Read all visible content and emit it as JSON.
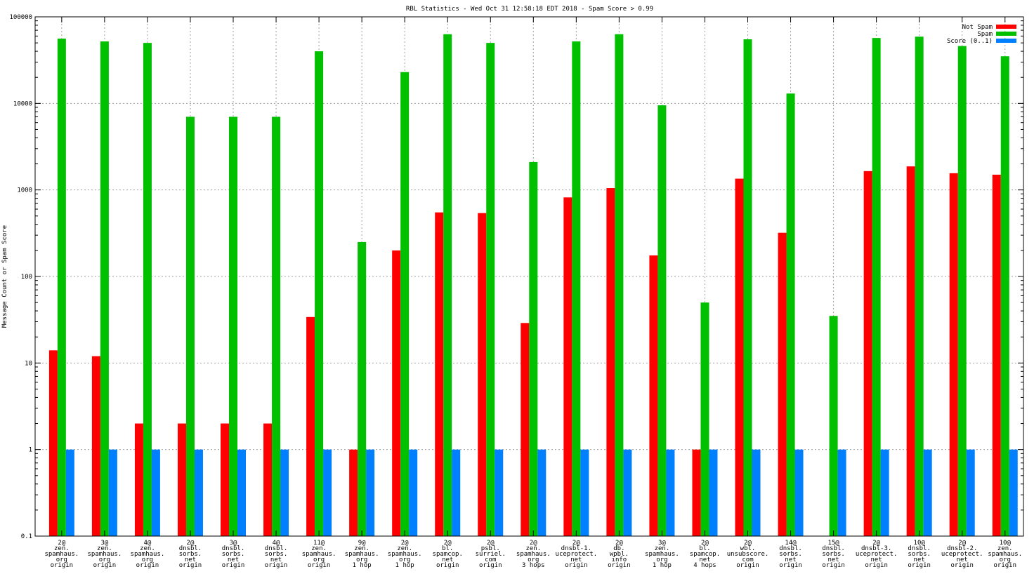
{
  "chart_data": {
    "type": "bar",
    "title": "RBL Statistics - Wed Oct 31 12:58:18 EDT 2018 - Spam Score > 0.99",
    "xlabel": "",
    "ylabel": "Message Count or Spam Score",
    "yscale": "log",
    "ylim": [
      0.1,
      100000
    ],
    "yticks": [
      "0.1",
      "1",
      "10",
      "100",
      "1000",
      "10000",
      "100000"
    ],
    "grid": true,
    "legend_position": "top-right",
    "categories": [
      [
        "2@",
        "zen.",
        "spamhaus.",
        "org",
        "origin"
      ],
      [
        "3@",
        "zen.",
        "spamhaus.",
        "org",
        "origin"
      ],
      [
        "4@",
        "zen.",
        "spamhaus.",
        "org",
        "origin"
      ],
      [
        "2@",
        "dnsbl.",
        "sorbs.",
        "net",
        "origin"
      ],
      [
        "3@",
        "dnsbl.",
        "sorbs.",
        "net",
        "origin"
      ],
      [
        "4@",
        "dnsbl.",
        "sorbs.",
        "net",
        "origin"
      ],
      [
        "11@",
        "zen.",
        "spamhaus.",
        "org",
        "origin"
      ],
      [
        "9@",
        "zen.",
        "spamhaus.",
        "org",
        "1 hop"
      ],
      [
        "2@",
        "zen.",
        "spamhaus.",
        "org",
        "1 hop"
      ],
      [
        "2@",
        "bl.",
        "spamcop.",
        "net",
        "origin"
      ],
      [
        "2@",
        "psbl.",
        "surriel.",
        "com",
        "origin"
      ],
      [
        "2@",
        "zen.",
        "spamhaus.",
        "org",
        "3 hops"
      ],
      [
        "2@",
        "dnsbl-1.",
        "uceprotect.",
        "net",
        "origin"
      ],
      [
        "2@",
        "db.",
        "wpbl.",
        "info",
        "origin"
      ],
      [
        "3@",
        "zen.",
        "spamhaus.",
        "org",
        "1 hop"
      ],
      [
        "2@",
        "bl.",
        "spamcop.",
        "net",
        "4 hops"
      ],
      [
        "2@",
        "wbl.",
        "unsubscore.",
        "com",
        "origin"
      ],
      [
        "14@",
        "dnsbl.",
        "sorbs.",
        "net",
        "origin"
      ],
      [
        "15@",
        "dnsbl.",
        "sorbs.",
        "net",
        "origin"
      ],
      [
        "2@",
        "dnsbl-3.",
        "uceprotect.",
        "net",
        "origin"
      ],
      [
        "10@",
        "dnsbl.",
        "sorbs.",
        "net",
        "origin"
      ],
      [
        "2@",
        "dnsbl-2.",
        "uceprotect.",
        "net",
        "origin"
      ],
      [
        "10@",
        "zen.",
        "spamhaus.",
        "org",
        "origin"
      ]
    ],
    "series": [
      {
        "name": "Not Spam",
        "color": "#ff0000",
        "values": [
          14,
          12,
          2,
          2,
          2,
          2,
          34,
          1,
          200,
          550,
          540,
          29,
          820,
          1050,
          175,
          1,
          1350,
          320,
          null,
          1650,
          1870,
          1560,
          1500
        ]
      },
      {
        "name": "Spam",
        "color": "#00c000",
        "values": [
          56000,
          52000,
          50000,
          7000,
          7000,
          7000,
          40000,
          250,
          23000,
          63000,
          50000,
          2100,
          52000,
          63000,
          9500,
          50,
          55000,
          13000,
          35,
          57000,
          59000,
          46000,
          35000
        ]
      },
      {
        "name": "Score (0..1)",
        "color": "#0080ff",
        "values": [
          1,
          1,
          1,
          1,
          1,
          1,
          1,
          1,
          1,
          1,
          1,
          1,
          1,
          1,
          1,
          1,
          1,
          1,
          1,
          1,
          1,
          1,
          1
        ]
      }
    ]
  }
}
